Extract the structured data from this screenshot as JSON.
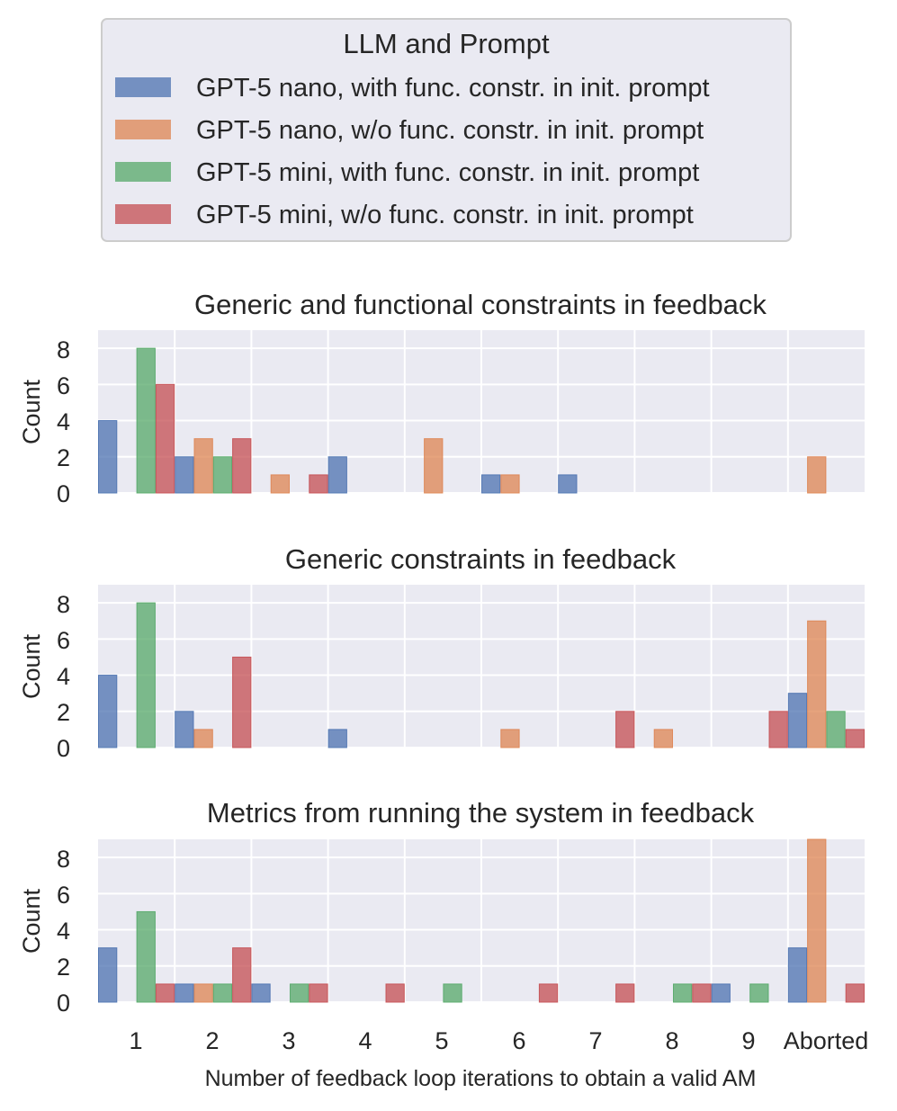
{
  "chart_data": {
    "type": "bar",
    "legend": {
      "title": "LLM and Prompt",
      "placement": "top-center",
      "entries": [
        {
          "label": "GPT-5 nano, with func. constr. in init. prompt",
          "color": "#4c72b0"
        },
        {
          "label": "GPT-5 nano, w/o func. constr. in init. prompt",
          "color": "#dd8452"
        },
        {
          "label": "GPT-5 mini, with func. constr. in init. prompt",
          "color": "#55a868"
        },
        {
          "label": "GPT-5 mini, w/o func. constr. in init. prompt",
          "color": "#c44e52"
        }
      ]
    },
    "xlabel": "Number of feedback loop iterations to obtain a valid AM",
    "categories": [
      "1",
      "2",
      "3",
      "4",
      "5",
      "6",
      "7",
      "8",
      "9",
      "Aborted"
    ],
    "ylabel": "Count",
    "yticks": [
      "0",
      "2",
      "4",
      "6",
      "8"
    ],
    "ylim": [
      0,
      9
    ],
    "panels": [
      {
        "title": "Generic and functional constraints in feedback",
        "series": [
          {
            "name": "GPT-5 nano, with func. constr. in init. prompt",
            "values": [
              4,
              2,
              0,
              2,
              0,
              1,
              1,
              0,
              0,
              0
            ]
          },
          {
            "name": "GPT-5 nano, w/o func. constr. in init. prompt",
            "values": [
              0,
              3,
              1,
              0,
              3,
              1,
              0,
              0,
              0,
              2
            ]
          },
          {
            "name": "GPT-5 mini, with func. constr. in init. prompt",
            "values": [
              8,
              2,
              0,
              0,
              0,
              0,
              0,
              0,
              0,
              0
            ]
          },
          {
            "name": "GPT-5 mini, w/o func. constr. in init. prompt",
            "values": [
              6,
              3,
              1,
              0,
              0,
              0,
              0,
              0,
              0,
              0
            ]
          }
        ]
      },
      {
        "title": "Generic constraints in feedback",
        "series": [
          {
            "name": "GPT-5 nano, with func. constr. in init. prompt",
            "values": [
              4,
              2,
              0,
              1,
              0,
              0,
              0,
              0,
              0,
              3
            ]
          },
          {
            "name": "GPT-5 nano, w/o func. constr. in init. prompt",
            "values": [
              0,
              1,
              0,
              0,
              0,
              1,
              0,
              1,
              0,
              7
            ]
          },
          {
            "name": "GPT-5 mini, with func. constr. in init. prompt",
            "values": [
              8,
              0,
              0,
              0,
              0,
              0,
              0,
              0,
              0,
              2
            ]
          },
          {
            "name": "GPT-5 mini, w/o func. constr. in init. prompt",
            "values": [
              0,
              5,
              0,
              0,
              0,
              0,
              2,
              0,
              2,
              1
            ]
          }
        ]
      },
      {
        "title": "Metrics from running the system in feedback",
        "series": [
          {
            "name": "GPT-5 nano, with func. constr. in init. prompt",
            "values": [
              3,
              1,
              1,
              0,
              0,
              0,
              0,
              0,
              1,
              3
            ]
          },
          {
            "name": "GPT-5 nano, w/o func. constr. in init. prompt",
            "values": [
              0,
              1,
              0,
              0,
              0,
              0,
              0,
              0,
              0,
              9
            ]
          },
          {
            "name": "GPT-5 mini, with func. constr. in init. prompt",
            "values": [
              5,
              1,
              1,
              0,
              1,
              0,
              0,
              1,
              1,
              0
            ]
          },
          {
            "name": "GPT-5 mini, w/o func. constr. in init. prompt",
            "values": [
              1,
              3,
              1,
              1,
              0,
              1,
              1,
              1,
              0,
              1
            ]
          }
        ]
      }
    ]
  }
}
